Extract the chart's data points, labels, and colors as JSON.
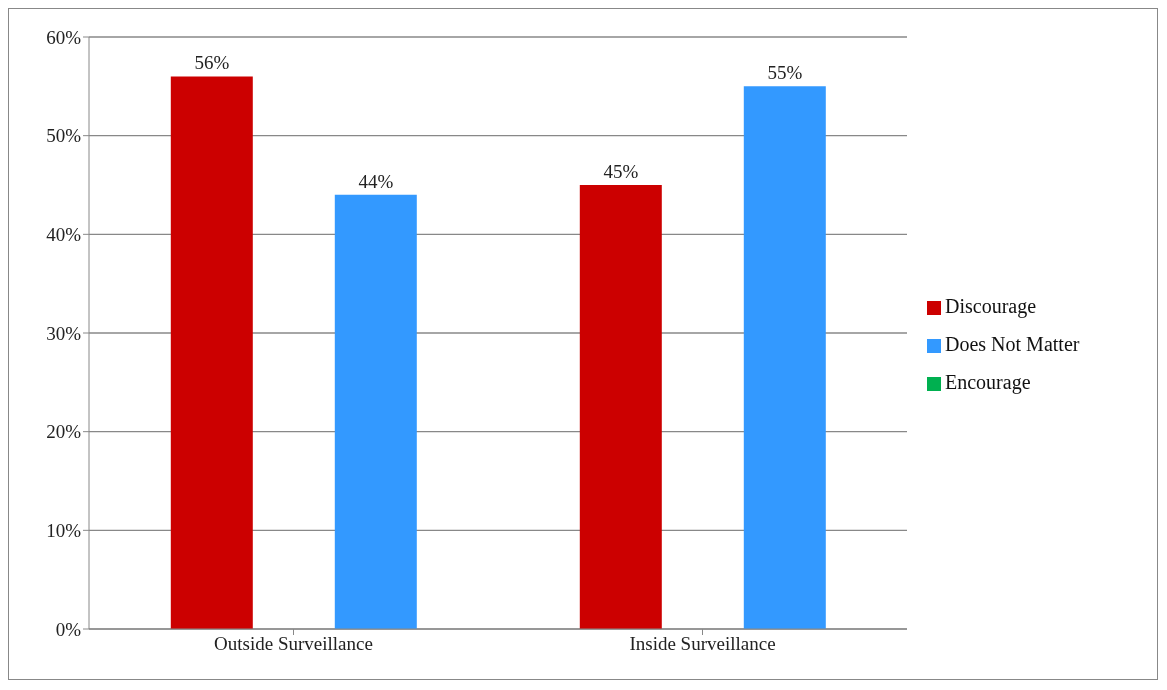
{
  "chart_data": {
    "type": "bar",
    "categories": [
      "Outside Surveillance",
      "Inside Surveillance"
    ],
    "series": [
      {
        "name": "Discourage",
        "color": "#cc0000",
        "values": [
          56,
          45
        ],
        "value_labels": [
          "56%",
          "45%"
        ]
      },
      {
        "name": "Encourage",
        "color": "#00b050",
        "values": [
          null,
          null
        ]
      },
      {
        "name": "Does Not Matter",
        "color": "#3399ff",
        "values": [
          44,
          55
        ],
        "value_labels": [
          "44%",
          "55%"
        ]
      }
    ],
    "ylim": [
      0,
      60
    ],
    "yticks": [
      {
        "value": 0,
        "label": "0%"
      },
      {
        "value": 10,
        "label": "10%"
      },
      {
        "value": 20,
        "label": "20%"
      },
      {
        "value": 30,
        "label": "30%"
      },
      {
        "value": 40,
        "label": "40%"
      },
      {
        "value": 50,
        "label": "50%"
      },
      {
        "value": 60,
        "label": "60%"
      }
    ],
    "grid": "y",
    "legend": "right"
  }
}
